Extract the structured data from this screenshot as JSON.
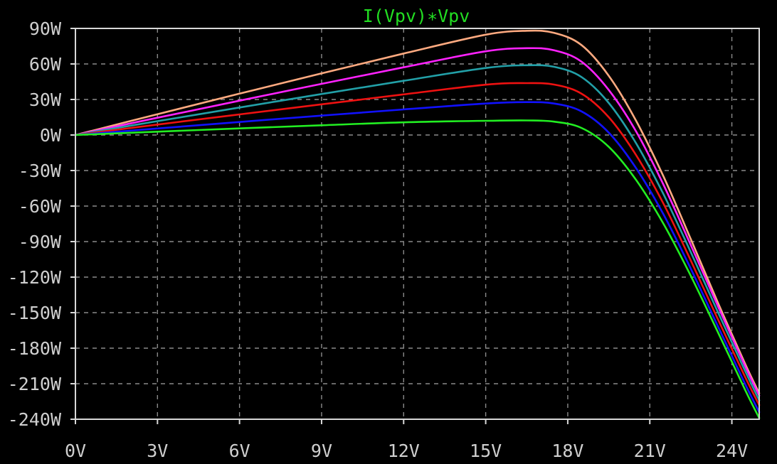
{
  "chart_data": {
    "type": "line",
    "title": "I(Vpv)∗Vpv",
    "title_color": "#22dd22",
    "xlabel": "",
    "ylabel": "",
    "xlim": [
      0,
      25
    ],
    "ylim": [
      -240,
      90
    ],
    "grid": true,
    "background_color": "#000000",
    "grid_color": "#8a8a8a",
    "x_ticks": [
      0,
      3,
      6,
      9,
      12,
      15,
      18,
      21,
      24
    ],
    "x_tick_labels": [
      "0V",
      "3V",
      "6V",
      "9V",
      "12V",
      "15V",
      "18V",
      "21V",
      "24V"
    ],
    "y_ticks": [
      90,
      60,
      30,
      0,
      -30,
      -60,
      -90,
      -120,
      -150,
      -180,
      -210,
      -240
    ],
    "y_tick_labels": [
      "90W",
      "60W",
      "30W",
      "0W",
      "-30W",
      "-60W",
      "-90W",
      "-120W",
      "-150W",
      "-180W",
      "-210W",
      "-240W"
    ],
    "x": [
      0,
      3,
      6,
      9,
      12,
      15,
      16.5,
      17.5,
      18.5,
      19.5,
      20.5,
      21.5,
      22.5,
      23.5,
      24.5,
      25
    ],
    "series": [
      {
        "color": "#ffaa80",
        "values": [
          0,
          17.6,
          34.9,
          52.0,
          68.8,
          84.7,
          88.0,
          86.3,
          76.0,
          50.0,
          12.0,
          -35.0,
          -88.0,
          -142.0,
          -194.0,
          -218.0
        ]
      },
      {
        "color": "#ff22ff",
        "values": [
          0,
          14.6,
          29.0,
          43.2,
          57.2,
          70.7,
          73.3,
          71.6,
          62.0,
          38.0,
          3.0,
          -42.0,
          -93.0,
          -145.0,
          -196.0,
          -220.0
        ]
      },
      {
        "color": "#22a0a8",
        "values": [
          0,
          11.7,
          23.2,
          34.6,
          45.8,
          56.6,
          58.9,
          57.6,
          49.0,
          27.0,
          -7.0,
          -50.0,
          -99.0,
          -150.0,
          -200.0,
          -224.0
        ]
      },
      {
        "color": "#ee1111",
        "values": [
          0,
          8.8,
          17.4,
          25.9,
          34.3,
          42.5,
          43.8,
          42.6,
          35.0,
          15.0,
          -17.0,
          -58.0,
          -106.0,
          -156.0,
          -205.0,
          -228.0
        ]
      },
      {
        "color": "#1111ff",
        "values": [
          0,
          5.5,
          11.0,
          16.4,
          21.6,
          26.6,
          27.8,
          26.6,
          20.0,
          2.0,
          -28.0,
          -67.0,
          -113.0,
          -162.0,
          -211.0,
          -234.0
        ]
      },
      {
        "color": "#22ee22",
        "values": [
          0,
          2.8,
          5.6,
          8.2,
          10.7,
          12.0,
          12.3,
          11.3,
          6.0,
          -10.0,
          -38.0,
          -75.0,
          -119.0,
          -167.0,
          -216.0,
          -239.0
        ]
      }
    ]
  }
}
